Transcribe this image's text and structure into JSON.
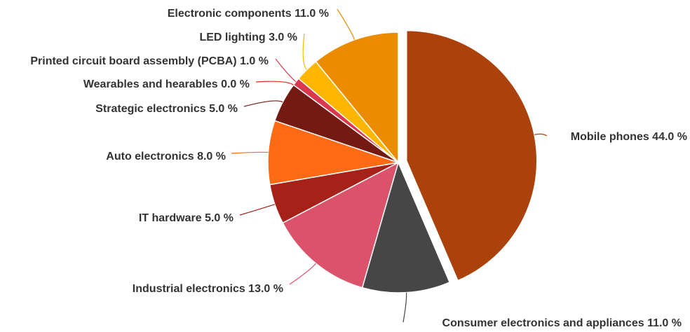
{
  "chart_data": {
    "type": "pie",
    "title": "",
    "slices": [
      {
        "label": "Mobile phones 44.0 %",
        "name": "Mobile phones",
        "value": 44.0,
        "color": "#AC420B",
        "exploded": true
      },
      {
        "label": "Consumer electronics and appliances 11.0 %",
        "name": "Consumer electronics and appliances",
        "value": 11.0,
        "color": "#464646"
      },
      {
        "label": "Industrial electronics 13.0 %",
        "name": "Industrial electronics",
        "value": 13.0,
        "color": "#DB536B"
      },
      {
        "label": "IT hardware 5.0 %",
        "name": "IT hardware",
        "value": 5.0,
        "color": "#A62118"
      },
      {
        "label": "Auto electronics 8.0 %",
        "name": "Auto electronics",
        "value": 8.0,
        "color": "#FF6A14"
      },
      {
        "label": "Strategic electronics 5.0 %",
        "name": "Strategic electronics",
        "value": 5.0,
        "color": "#731A12"
      },
      {
        "label": "Wearables and hearables 0.0 %",
        "name": "Wearables and hearables",
        "value": 0.0,
        "color": "#E0301E"
      },
      {
        "label": "Printed circuit board assembly (PCBA) 1.0 %",
        "name": "Printed circuit board assembly (PCBA)",
        "value": 1.0,
        "color": "#D9384E"
      },
      {
        "label": "LED lighting 3.0 %",
        "name": "LED lighting",
        "value": 3.0,
        "color": "#FFB600"
      },
      {
        "label": "Electronic components 11.0 %",
        "name": "Electronic components",
        "value": 11.0,
        "color": "#EB8C00"
      }
    ]
  }
}
